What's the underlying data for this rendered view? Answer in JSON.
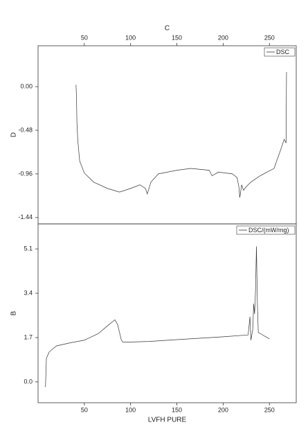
{
  "chart_data": [
    {
      "type": "line",
      "xlabel": "C",
      "ylabel": "D",
      "xaxis_position": "top",
      "legend": "top-right",
      "x": [
        41,
        41.5,
        42,
        43,
        45,
        50,
        60,
        75,
        88,
        100,
        110,
        116,
        118,
        122,
        130,
        150,
        165,
        185,
        188,
        195,
        210,
        215,
        217,
        218,
        220,
        222,
        225,
        230,
        240,
        255,
        262,
        266,
        268,
        268.5
      ],
      "series": [
        {
          "name": "DSC",
          "color": "#333333",
          "values": [
            0.02,
            -0.1,
            -0.4,
            -0.6,
            -0.82,
            -0.95,
            -1.05,
            -1.12,
            -1.16,
            -1.12,
            -1.08,
            -1.12,
            -1.18,
            -1.05,
            -0.96,
            -0.92,
            -0.9,
            -0.92,
            -0.98,
            -0.94,
            -0.96,
            -1.0,
            -1.1,
            -1.22,
            -1.08,
            -1.14,
            -1.1,
            -1.05,
            -0.98,
            -0.9,
            -0.7,
            -0.58,
            -0.62,
            0.16
          ]
        }
      ],
      "xlim": [
        0,
        279
      ],
      "xticks": [
        50,
        100,
        150,
        200,
        250
      ],
      "ylim": [
        -1.51,
        0.45
      ],
      "yticks": [
        {
          "value": 0,
          "label": "0.00"
        },
        -0.48,
        -0.96,
        -1.44
      ]
    },
    {
      "type": "line",
      "xlabel": "LVFH PURE",
      "ylabel": "B",
      "xaxis_position": "bottom",
      "legend": "top-right",
      "x": [
        8,
        9,
        12,
        20,
        35,
        50,
        65,
        75,
        83,
        86,
        90,
        92,
        120,
        150,
        200,
        227,
        229,
        230,
        232,
        233,
        234,
        235,
        236,
        237,
        238,
        245,
        250
      ],
      "series": [
        {
          "name": "DSC/(mW/mg)",
          "color": "#333333",
          "values": [
            -0.2,
            0.9,
            1.15,
            1.38,
            1.5,
            1.6,
            1.85,
            2.15,
            2.38,
            2.2,
            1.6,
            1.52,
            1.55,
            1.62,
            1.73,
            1.8,
            2.5,
            1.6,
            2.0,
            3.0,
            2.6,
            3.5,
            5.2,
            3.0,
            1.9,
            1.75,
            1.65
          ]
        }
      ],
      "xlim": [
        0,
        279
      ],
      "xticks": [
        50,
        100,
        150,
        200,
        250
      ],
      "ylim": [
        -0.8,
        6.06
      ],
      "yticks": [
        {
          "value": 0,
          "label": "0.0"
        },
        1.7,
        3.4,
        5.1
      ]
    }
  ]
}
